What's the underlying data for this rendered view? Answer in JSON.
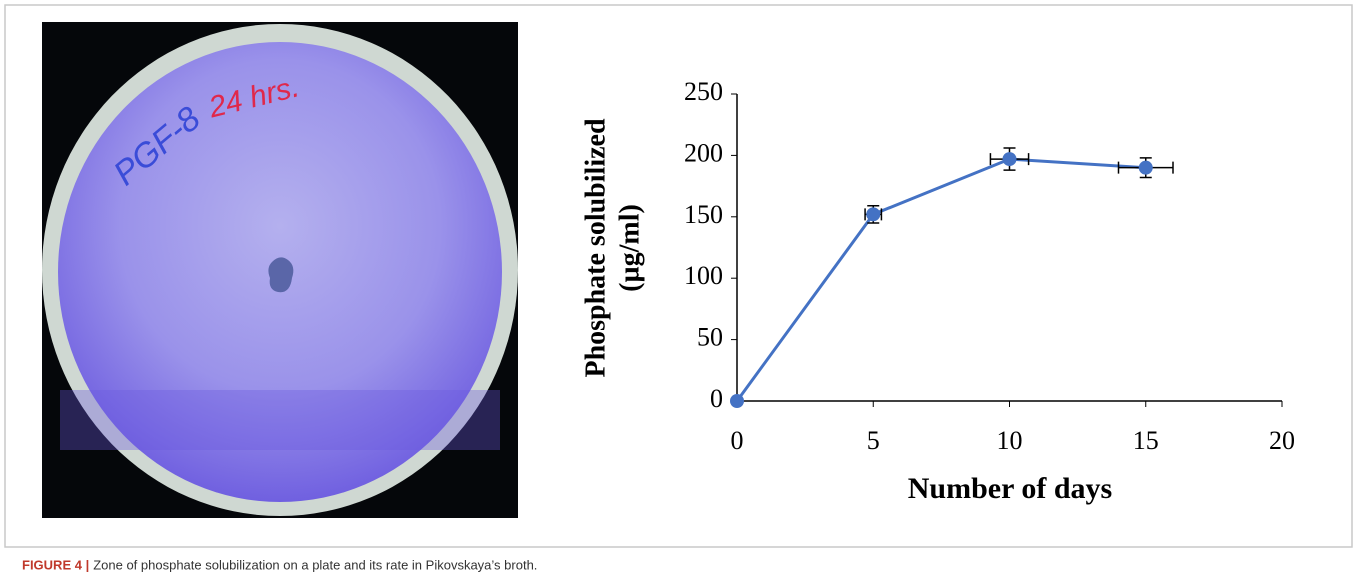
{
  "figure": {
    "caption_label": "FIGURE 4 |",
    "caption": "Zone of phosphate solubilization on a plate and its rate in Pikovskaya’s broth."
  },
  "plate_labels": [
    "PGF-8",
    "24 hrs."
  ],
  "chart_data": {
    "type": "line",
    "x_label": "Number of days",
    "y_label": [
      "Phosphate solubilized",
      "(µg/ml)"
    ],
    "x": [
      0,
      5,
      10,
      15
    ],
    "series": [
      {
        "color": "#4472c4",
        "values": [
          0,
          152,
          197,
          190
        ],
        "yerr": [
          0,
          7,
          9,
          8
        ],
        "xerr": [
          0,
          0.3,
          0.7,
          1
        ]
      }
    ],
    "xlim": [
      0,
      20
    ],
    "xticks": [
      0,
      5,
      10,
      15,
      20
    ],
    "ylim": [
      0,
      250
    ],
    "yticks": [
      0,
      50,
      100,
      150,
      200,
      250
    ]
  }
}
